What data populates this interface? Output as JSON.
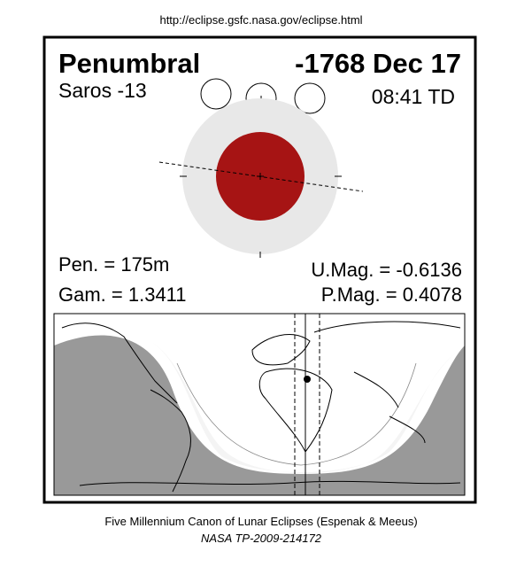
{
  "header": {
    "url": "http://eclipse.gsfc.nasa.gov/eclipse.html"
  },
  "panel": {
    "type": "Penumbral",
    "date": "-1768 Dec 17",
    "saros": "Saros -13",
    "time": "08:41 TD"
  },
  "params": {
    "pen": "Pen. = 175m",
    "gam": "Gam. = 1.3411",
    "umag": "U.Mag. = -0.6136",
    "pmag": "P.Mag. = 0.4078"
  },
  "footer": {
    "title": "Five Millennium Canon of Lunar Eclipses (Espenak & Meeus)",
    "ref": "NASA TP-2009-214172"
  }
}
